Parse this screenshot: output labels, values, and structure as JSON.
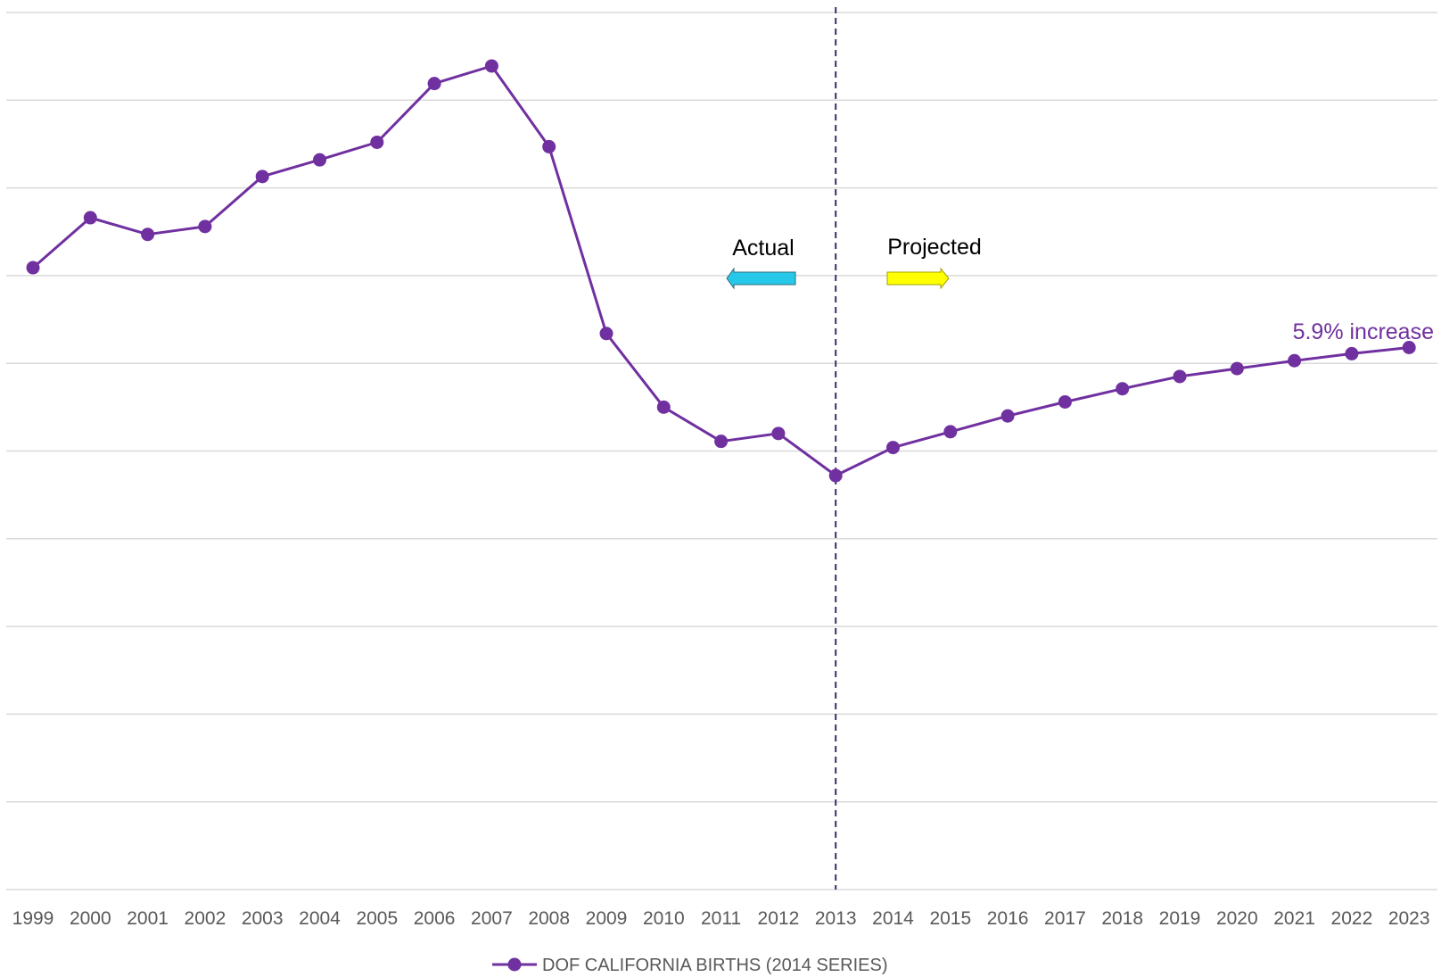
{
  "chart_data": {
    "type": "line",
    "x": [
      "1999",
      "2000",
      "2001",
      "2002",
      "2003",
      "2004",
      "2005",
      "2006",
      "2007",
      "2008",
      "2009",
      "2010",
      "2011",
      "2012",
      "2013",
      "2014",
      "2015",
      "2016",
      "2017",
      "2018",
      "2019",
      "2020",
      "2021",
      "2022",
      "2023"
    ],
    "series": [
      {
        "name": "DOF CALIFORNIA BIRTHS (2014 SERIES)",
        "values": [
          5.09,
          5.66,
          5.47,
          5.56,
          6.13,
          6.32,
          6.52,
          7.19,
          7.39,
          6.47,
          4.34,
          3.5,
          3.11,
          3.2,
          2.72,
          3.04,
          3.22,
          3.4,
          3.56,
          3.71,
          3.85,
          3.94,
          4.03,
          4.11,
          4.18
        ],
        "color": "#7030A0"
      }
    ],
    "ylim": [
      -2,
      8
    ],
    "y_gridlines": [
      -2,
      -1,
      0,
      1,
      2,
      3,
      4,
      5,
      6,
      7,
      8
    ],
    "y_tick_labels_shown": false,
    "grid": true,
    "legend_position": "bottom",
    "divider_at": "2013",
    "annotations": {
      "actual": "Actual",
      "projected": "Projected",
      "increase": "5.9% increase"
    },
    "colors": {
      "line": "#7030A0",
      "grid": "#D9D9D9",
      "divider": "#3A2C6B",
      "actual_arrow": "#25C8E8",
      "projected_arrow": "#FFFF00",
      "tick_text": "#595959"
    }
  }
}
